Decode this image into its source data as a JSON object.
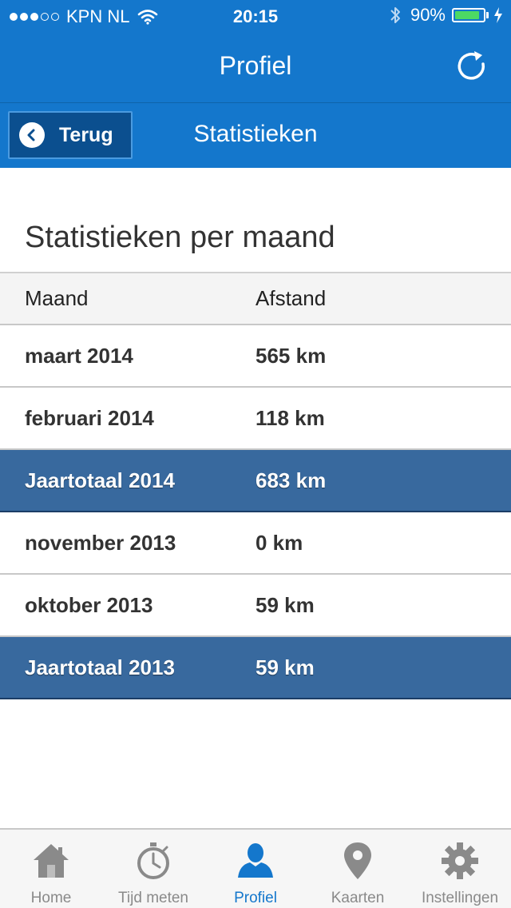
{
  "status_bar": {
    "carrier": "KPN NL",
    "time": "20:15",
    "battery": "90%",
    "battery_level": 0.9
  },
  "nav": {
    "title": "Profiel",
    "refresh_icon": "refresh-icon"
  },
  "subnav": {
    "back_label": "Terug",
    "title": "Statistieken"
  },
  "section": {
    "title": "Statistieken per maand"
  },
  "table": {
    "headers": {
      "month": "Maand",
      "distance": "Afstand"
    },
    "rows": [
      {
        "month": "maart 2014",
        "distance": "565 km",
        "type": "data"
      },
      {
        "month": "februari 2014",
        "distance": "118 km",
        "type": "data"
      },
      {
        "month": "Jaartotaal 2014",
        "distance": "683 km",
        "type": "total"
      },
      {
        "month": "november 2013",
        "distance": "0 km",
        "type": "data"
      },
      {
        "month": "oktober 2013",
        "distance": "59 km",
        "type": "data"
      },
      {
        "month": "Jaartotaal 2013",
        "distance": "59 km",
        "type": "total"
      }
    ]
  },
  "tabbar": {
    "items": [
      {
        "label": "Home",
        "icon": "home-icon"
      },
      {
        "label": "Tijd meten",
        "icon": "stopwatch-icon"
      },
      {
        "label": "Profiel",
        "icon": "person-icon",
        "active": true
      },
      {
        "label": "Kaarten",
        "icon": "map-pin-icon"
      },
      {
        "label": "Instellingen",
        "icon": "gear-icon"
      }
    ]
  },
  "colors": {
    "header_blue": "#1477cc",
    "total_row": "#38699e",
    "active_tab": "#1477cc",
    "inactive_tab": "#8a8a8a"
  }
}
